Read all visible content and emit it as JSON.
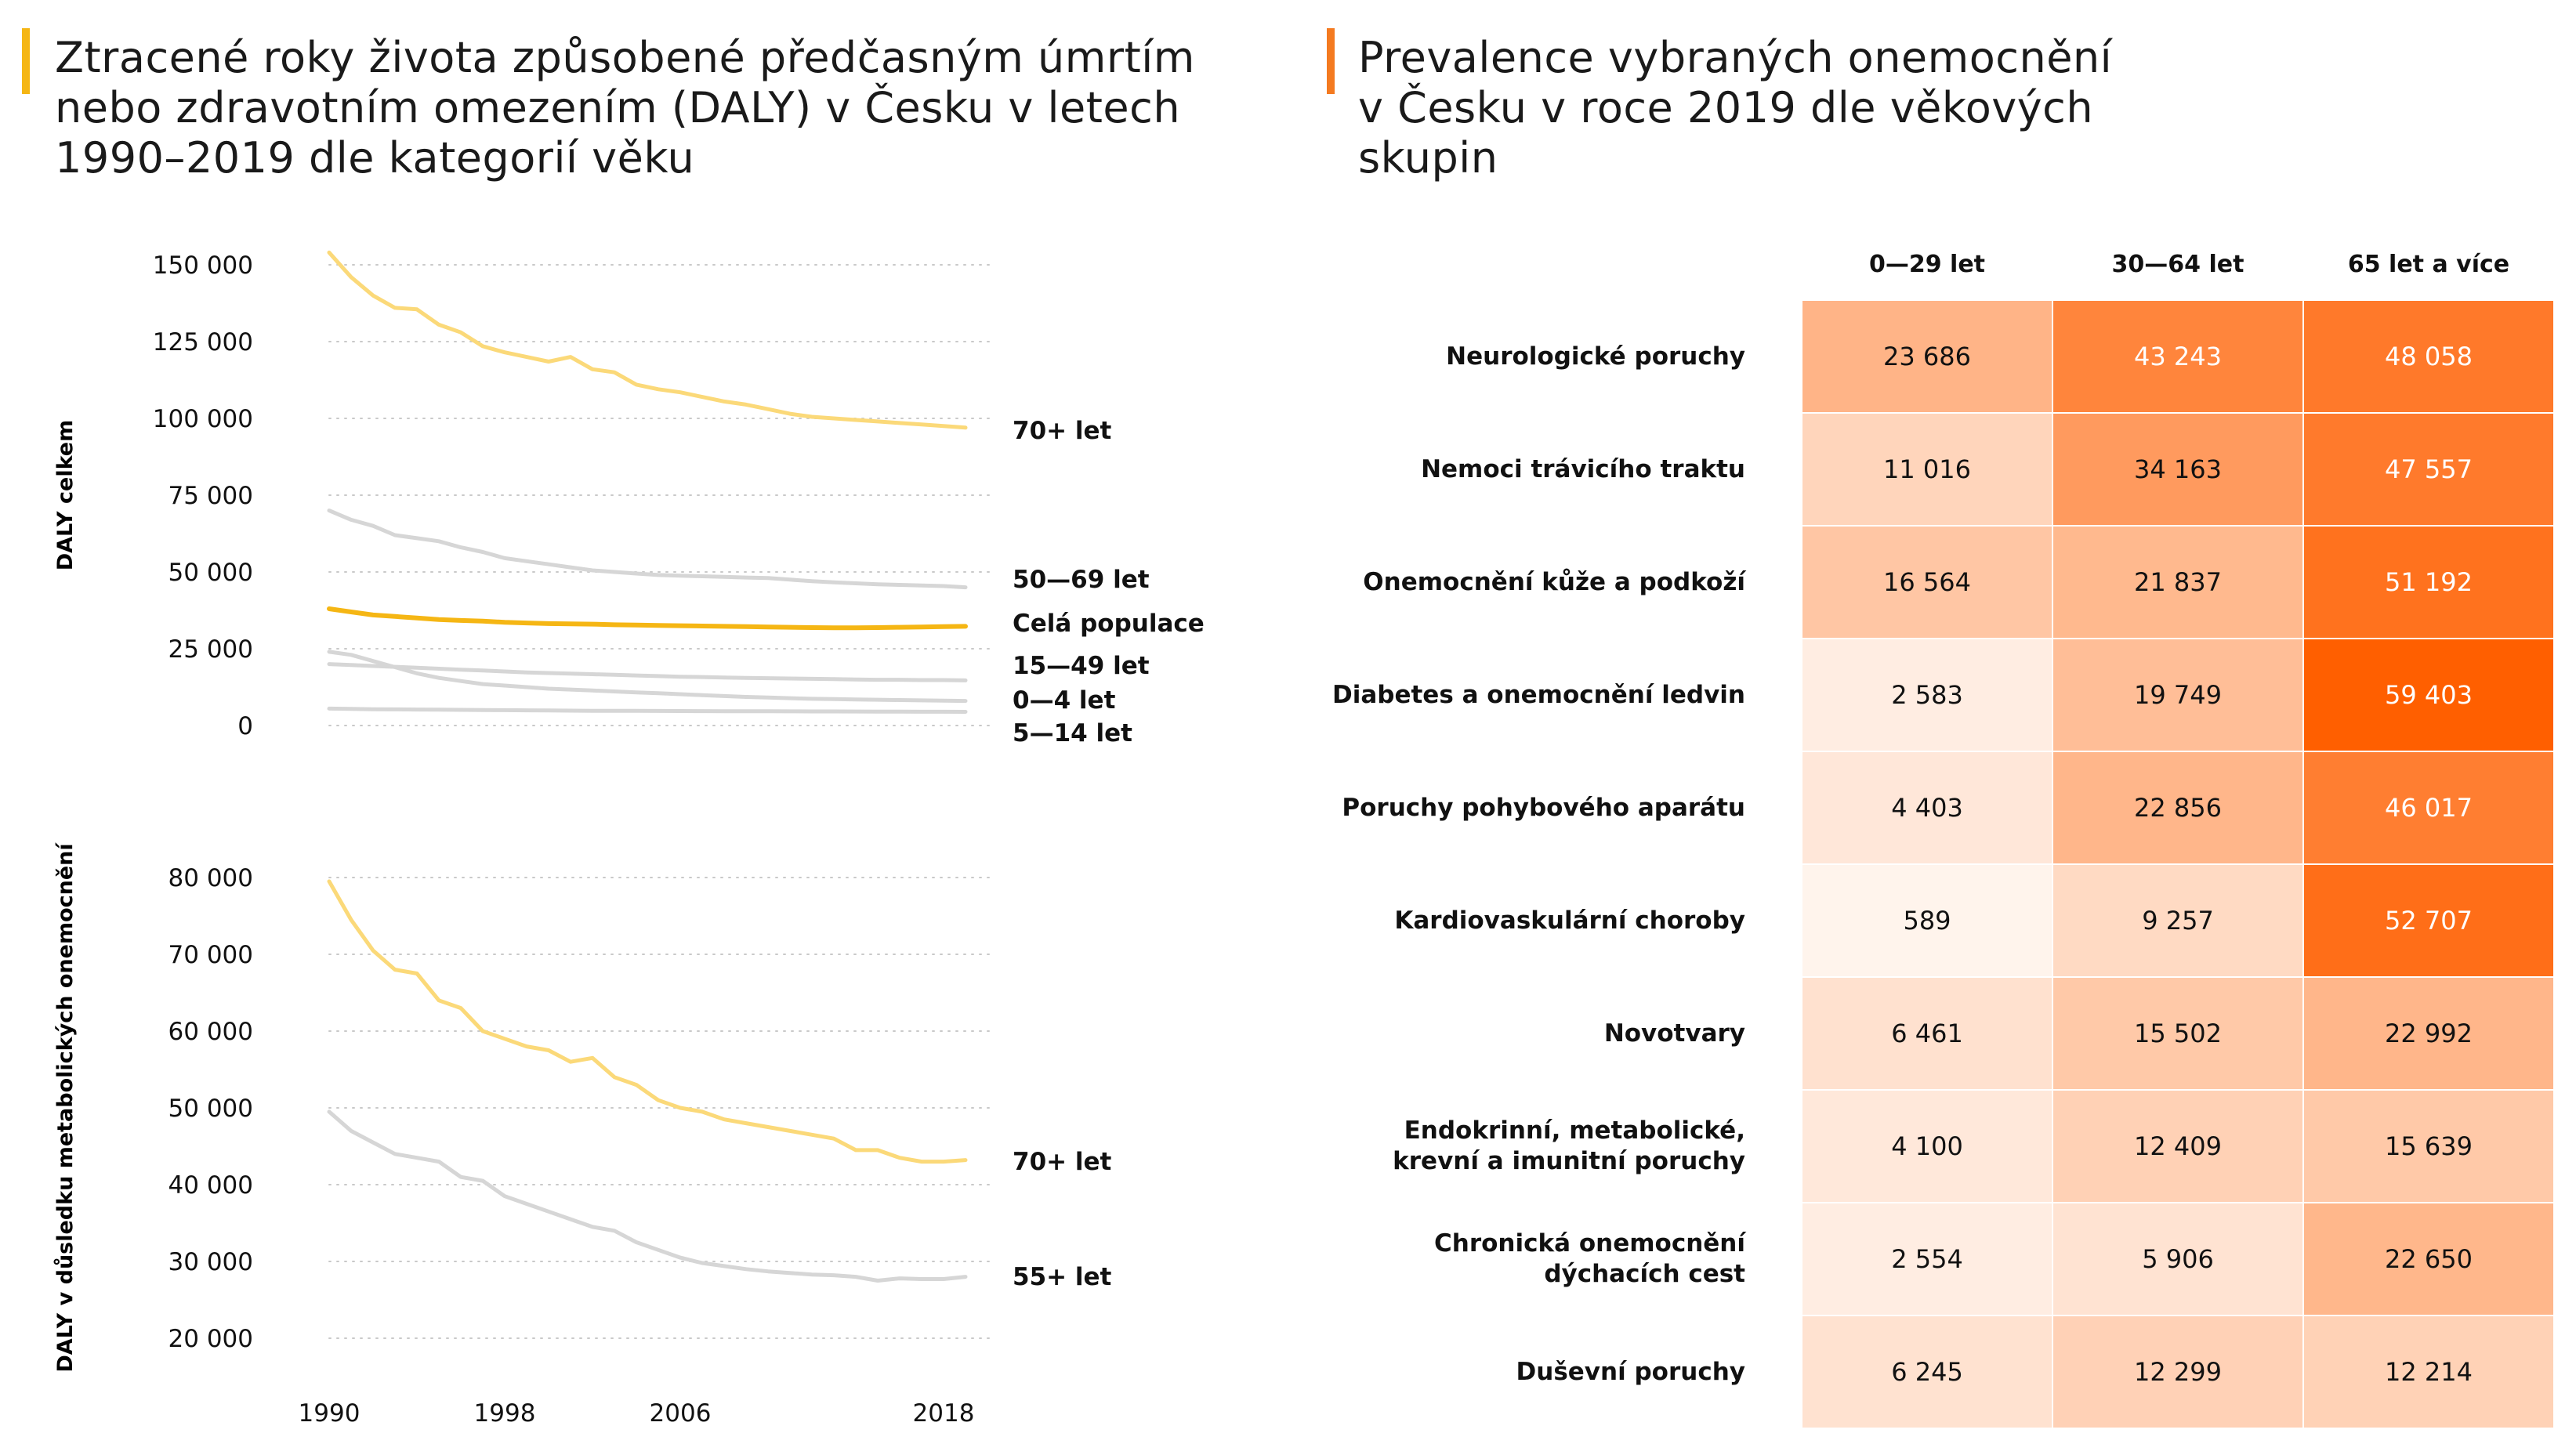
{
  "left_panel": {
    "title": "Ztracené roky života způsobené předčasným úmrtím nebo zdravotním omezením (DALY) v Česku v letech 1990–2019 dle kategorií věku",
    "accent_color": "#f5b614"
  },
  "right_panel": {
    "title": "Prevalence vybraných onemocnění v Česku v roce 2019 dle věkových skupin",
    "accent_color": "#f47a20"
  },
  "chart_data": [
    {
      "type": "line",
      "ylabel": "DALY celkem",
      "ylim": [
        0,
        150000
      ],
      "yticks": [
        0,
        25000,
        50000,
        75000,
        100000,
        125000,
        150000
      ],
      "ytick_labels": [
        "0",
        "25 000",
        "50 000",
        "75 000",
        "100 000",
        "125 000",
        "150 000"
      ],
      "x": [
        1990,
        1991,
        1992,
        1993,
        1994,
        1995,
        1996,
        1997,
        1998,
        1999,
        2000,
        2001,
        2002,
        2003,
        2004,
        2005,
        2006,
        2007,
        2008,
        2009,
        2010,
        2011,
        2012,
        2013,
        2014,
        2015,
        2016,
        2017,
        2018,
        2019
      ],
      "grid": "horizontal dotted",
      "series": [
        {
          "name": "70+ let",
          "color": "#fbd979",
          "values": [
            154000,
            146000,
            140000,
            136000,
            135500,
            130500,
            128000,
            123500,
            121500,
            120000,
            118500,
            120000,
            116000,
            115000,
            111000,
            109500,
            108500,
            107000,
            105500,
            104500,
            103000,
            101500,
            100500,
            100000,
            99500,
            99000,
            98500,
            98000,
            97500,
            97000
          ]
        },
        {
          "name": "50—69 let",
          "color": "#d6d6d6",
          "values": [
            70000,
            67000,
            65000,
            62000,
            61000,
            60000,
            58000,
            56500,
            54500,
            53500,
            52500,
            51500,
            50500,
            50000,
            49500,
            49000,
            48800,
            48600,
            48400,
            48200,
            48000,
            47500,
            47000,
            46600,
            46300,
            46000,
            45800,
            45600,
            45400,
            45000
          ]
        },
        {
          "name": "Celá populace",
          "color": "#f5b614",
          "values": [
            38000,
            37000,
            36000,
            35500,
            35000,
            34500,
            34200,
            34000,
            33600,
            33400,
            33200,
            33100,
            33000,
            32800,
            32700,
            32600,
            32500,
            32400,
            32300,
            32200,
            32100,
            32000,
            31900,
            31800,
            31800,
            31900,
            32000,
            32100,
            32200,
            32300
          ]
        },
        {
          "name": "15—49 let",
          "color": "#d6d6d6",
          "values": [
            20000,
            19700,
            19400,
            19100,
            18800,
            18500,
            18200,
            17900,
            17600,
            17300,
            17100,
            16900,
            16700,
            16500,
            16300,
            16100,
            15900,
            15800,
            15600,
            15500,
            15400,
            15300,
            15200,
            15100,
            15000,
            14900,
            14900,
            14800,
            14800,
            14700
          ]
        },
        {
          "name": "0—4 let",
          "color": "#d6d6d6",
          "values": [
            24000,
            23000,
            21000,
            19000,
            17000,
            15500,
            14500,
            13500,
            13000,
            12500,
            12000,
            11700,
            11400,
            11100,
            10800,
            10500,
            10200,
            9900,
            9600,
            9300,
            9100,
            8900,
            8700,
            8600,
            8500,
            8400,
            8300,
            8200,
            8100,
            8000
          ]
        },
        {
          "name": "5—14 let",
          "color": "#d6d6d6",
          "values": [
            5500,
            5400,
            5300,
            5250,
            5200,
            5150,
            5100,
            5050,
            5000,
            4950,
            4900,
            4850,
            4800,
            4780,
            4760,
            4740,
            4720,
            4700,
            4680,
            4660,
            4640,
            4620,
            4600,
            4580,
            4560,
            4540,
            4520,
            4500,
            4480,
            4460
          ]
        }
      ]
    },
    {
      "type": "line",
      "ylabel": "DALY v důsledku metabolických onemocnění",
      "ylim": [
        20000,
        80000
      ],
      "yticks": [
        20000,
        30000,
        40000,
        50000,
        60000,
        70000,
        80000
      ],
      "ytick_labels": [
        "20 000",
        "30 000",
        "40 000",
        "50 000",
        "60 000",
        "70 000",
        "80 000"
      ],
      "x": [
        1990,
        1991,
        1992,
        1993,
        1994,
        1995,
        1996,
        1997,
        1998,
        1999,
        2000,
        2001,
        2002,
        2003,
        2004,
        2005,
        2006,
        2007,
        2008,
        2009,
        2010,
        2011,
        2012,
        2013,
        2014,
        2015,
        2016,
        2017,
        2018,
        2019
      ],
      "xticks": [
        1990,
        1998,
        2006,
        2018
      ],
      "xtick_labels": [
        "1990",
        "1998",
        "2006",
        "2018"
      ],
      "grid": "horizontal dotted",
      "series": [
        {
          "name": "70+ let",
          "color": "#fbd979",
          "values": [
            79500,
            74500,
            70500,
            68000,
            67500,
            64000,
            63000,
            60000,
            59000,
            58000,
            57500,
            56000,
            56500,
            54000,
            53000,
            51000,
            50000,
            49500,
            48500,
            48000,
            47500,
            47000,
            46500,
            46000,
            44500,
            44500,
            43500,
            43000,
            43000,
            43200
          ]
        },
        {
          "name": "55+ let",
          "color": "#d6d6d6",
          "values": [
            49500,
            47000,
            45500,
            44000,
            43500,
            43000,
            41000,
            40500,
            38500,
            37500,
            36500,
            35500,
            34500,
            34000,
            32500,
            31500,
            30500,
            29800,
            29400,
            29000,
            28700,
            28500,
            28300,
            28200,
            28000,
            27500,
            27800,
            27700,
            27700,
            28000
          ]
        }
      ]
    },
    {
      "type": "heatmap",
      "columns": [
        "0—29 let",
        "30—64 let",
        "65 let a více"
      ],
      "rows": [
        {
          "label": "Neurologické poruchy",
          "values": [
            "23 686",
            "43 243",
            "48 058"
          ],
          "numeric": [
            23686,
            43243,
            48058
          ]
        },
        {
          "label": "Nemoci trávicího traktu",
          "values": [
            "11 016",
            "34 163",
            "47 557"
          ],
          "numeric": [
            11016,
            34163,
            47557
          ]
        },
        {
          "label": "Onemocnění kůže a podkoží",
          "values": [
            "16 564",
            "21 837",
            "51 192"
          ],
          "numeric": [
            16564,
            21837,
            51192
          ]
        },
        {
          "label": "Diabetes a onemocnění ledvin",
          "values": [
            "2 583",
            "19 749",
            "59 403"
          ],
          "numeric": [
            2583,
            19749,
            59403
          ]
        },
        {
          "label": "Poruchy pohybového aparátu",
          "values": [
            "4 403",
            "22 856",
            "46 017"
          ],
          "numeric": [
            4403,
            22856,
            46017
          ]
        },
        {
          "label": "Kardiovaskulární choroby",
          "values": [
            "589",
            "9 257",
            "52 707"
          ],
          "numeric": [
            589,
            9257,
            52707
          ]
        },
        {
          "label": "Novotvary",
          "values": [
            "6 461",
            "15 502",
            "22 992"
          ],
          "numeric": [
            6461,
            15502,
            22992
          ]
        },
        {
          "label": "Endokrinní, metabolické,\nkrevní a imunitní poruchy",
          "values": [
            "4 100",
            "12 409",
            "15 639"
          ],
          "numeric": [
            4100,
            12409,
            15639
          ]
        },
        {
          "label": "Chronická onemocnění\ndýchacích cest",
          "values": [
            "2 554",
            "5 906",
            "22 650"
          ],
          "numeric": [
            2554,
            5906,
            22650
          ]
        },
        {
          "label": "Duševní poruchy",
          "values": [
            "6 245",
            "12 299",
            "12 214"
          ],
          "numeric": [
            6245,
            12299,
            12214
          ]
        }
      ],
      "color_low": "#fff6f0",
      "color_high": "#ff5f00",
      "text_dark": "#111111",
      "text_light": "#ffffff"
    }
  ]
}
